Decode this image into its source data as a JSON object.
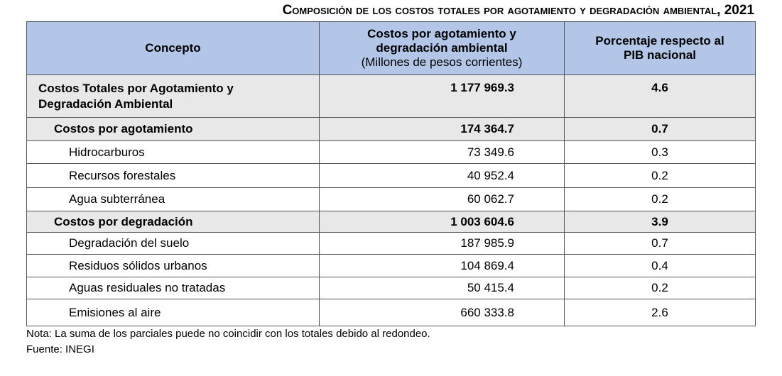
{
  "title": "Composición de los costos totales por agotamiento y degradación ambiental, 2021",
  "headers": {
    "concepto": "Concepto",
    "costos_line1": "Costos por agotamiento y",
    "costos_line2": "degradación ambiental",
    "costos_unit": "(Millones de pesos corrientes)",
    "pct_line1": "Porcentaje respecto al",
    "pct_line2": "PIB nacional"
  },
  "rows": [
    {
      "concept": "Costos Totales por Agotamiento y",
      "concept2": "Degradación Ambiental",
      "value": "1 177 969.3",
      "pct": "4.6"
    },
    {
      "concept": "Costos por agotamiento",
      "value": "174 364.7",
      "pct": "0.7"
    },
    {
      "concept": "Hidrocarburos",
      "value": "73 349.6",
      "pct": "0.3"
    },
    {
      "concept": "Recursos forestales",
      "value": "40 952.4",
      "pct": "0.2"
    },
    {
      "concept": "Agua subterránea",
      "value": "60 062.7",
      "pct": "0.2"
    },
    {
      "concept": "Costos por degradación",
      "value": "1 003 604.6",
      "pct": "3.9"
    },
    {
      "concept": "Degradación del suelo",
      "value": "187 985.9",
      "pct": "0.7"
    },
    {
      "concept": "Residuos sólidos urbanos",
      "value": "104 869.4",
      "pct": "0.4"
    },
    {
      "concept": "Aguas residuales no tratadas",
      "value": "50 415.4",
      "pct": "0.2"
    },
    {
      "concept": "Emisiones al aire",
      "value": "660 333.8",
      "pct": "2.6"
    }
  ],
  "note": "Nota: La suma de los parciales puede no coincidir con los totales debido al redondeo.",
  "source": "Fuente: INEGI"
}
